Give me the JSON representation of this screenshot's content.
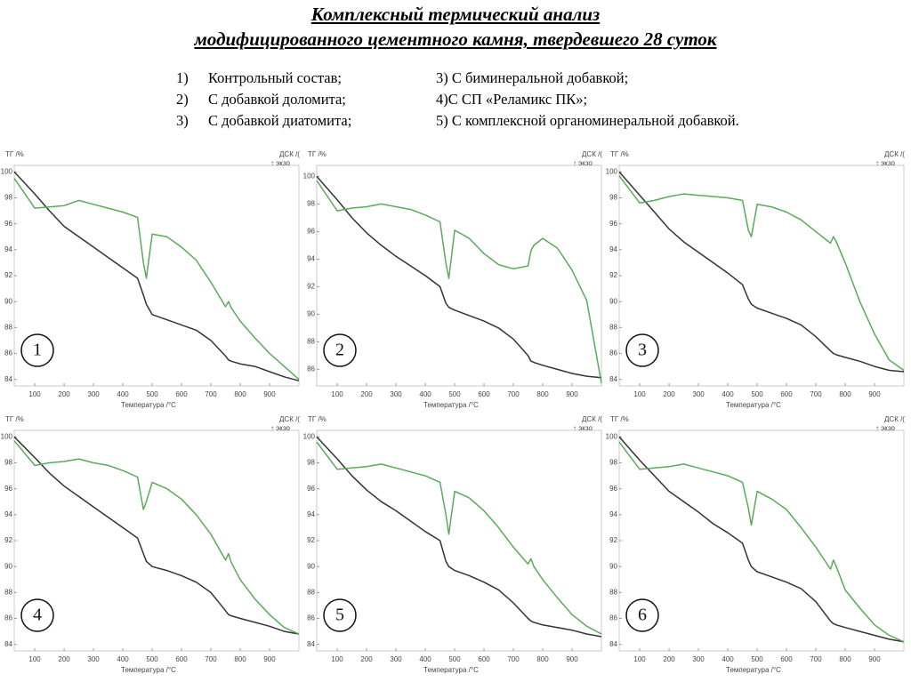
{
  "header": {
    "title": [
      "Комплексный термический анализ",
      "модифицированного цементного камня, твердевшего 28 суток"
    ],
    "left_items": [
      {
        "num": "1)",
        "text": "Контрольный состав;"
      },
      {
        "num": "2)",
        "text": "С добавкой доломита;"
      },
      {
        "num": "3)",
        "text": "С добавкой диатомита;"
      }
    ],
    "right_items": [
      "3) С биминеральной добавкой;",
      "4)С СП «Реламикс ПК»;",
      "5) С комплексной органоминеральной добавкой."
    ]
  },
  "chart_data": [
    {
      "type": "line",
      "label": "1",
      "y_label": "ТГ /%",
      "y2_label": "ДСК /(",
      "annotation": "↑ экзо",
      "x_label": "Температура /°C",
      "x": [
        30,
        100,
        150,
        200,
        250,
        300,
        350,
        400,
        450,
        470,
        480,
        500,
        550,
        600,
        650,
        700,
        750,
        760,
        770,
        800,
        850,
        900,
        950,
        1000
      ],
      "xlim": [
        30,
        1000
      ],
      "xticks": [
        100,
        200,
        300,
        400,
        500,
        600,
        700,
        800,
        900
      ],
      "ylim": [
        83.5,
        100.5
      ],
      "yticks": [
        84,
        86,
        88,
        90,
        92,
        94,
        96,
        98,
        100
      ],
      "series": [
        {
          "color": "#333333",
          "values": [
            100,
            98.3,
            97,
            95.8,
            95,
            94.2,
            93.4,
            92.6,
            91.8,
            90.5,
            89.8,
            89,
            88.6,
            88.2,
            87.8,
            87,
            85.8,
            85.5,
            85.4,
            85.2,
            85,
            84.6,
            84.2,
            83.9
          ]
        },
        {
          "color": "#5aaa5a",
          "values": [
            99.5,
            97.2,
            97.3,
            97.4,
            97.8,
            97.5,
            97.2,
            96.9,
            96.5,
            93,
            91.8,
            95.2,
            95,
            94.2,
            93.2,
            91.5,
            89.6,
            90,
            89.5,
            88.5,
            87.2,
            86,
            85,
            84
          ]
        }
      ]
    },
    {
      "type": "line",
      "label": "2",
      "y_label": "ТГ /%",
      "y2_label": "ДСК /(",
      "annotation": "↑ экзо",
      "x_label": "Температура /°C",
      "x": [
        30,
        100,
        150,
        200,
        250,
        300,
        350,
        400,
        450,
        470,
        480,
        500,
        550,
        600,
        650,
        700,
        750,
        760,
        770,
        800,
        850,
        900,
        950,
        1000
      ],
      "xlim": [
        30,
        1000
      ],
      "xticks": [
        100,
        200,
        300,
        400,
        500,
        600,
        700,
        800,
        900
      ],
      "ylim": [
        84.8,
        100.8
      ],
      "yticks": [
        86,
        88,
        90,
        92,
        94,
        96,
        98,
        100
      ],
      "series": [
        {
          "color": "#333333",
          "values": [
            100,
            98.3,
            97,
            95.9,
            95,
            94.2,
            93.5,
            92.8,
            92,
            90.8,
            90.5,
            90.3,
            89.9,
            89.5,
            89,
            88.2,
            87,
            86.6,
            86.5,
            86.3,
            86,
            85.7,
            85.5,
            85.4
          ]
        },
        {
          "color": "#5aaa5a",
          "values": [
            99.7,
            97.5,
            97.7,
            97.8,
            98,
            97.8,
            97.6,
            97.2,
            96.7,
            93.7,
            92.6,
            96.1,
            95.5,
            94.4,
            93.6,
            93.3,
            93.5,
            94.6,
            95,
            95.5,
            94.8,
            93.2,
            91,
            85
          ]
        }
      ]
    },
    {
      "type": "line",
      "label": "3",
      "y_label": "ТГ /%",
      "y2_label": "ДСК /(",
      "annotation": "↑ экзо",
      "x_label": "Температура /°C",
      "x": [
        30,
        100,
        150,
        200,
        250,
        300,
        350,
        400,
        450,
        470,
        480,
        500,
        550,
        600,
        650,
        700,
        750,
        760,
        770,
        800,
        850,
        900,
        950,
        1000
      ],
      "xlim": [
        30,
        1000
      ],
      "xticks": [
        100,
        200,
        300,
        400,
        500,
        600,
        700,
        800,
        900
      ],
      "ylim": [
        83.5,
        100.5
      ],
      "yticks": [
        84,
        86,
        88,
        90,
        92,
        94,
        96,
        98,
        100
      ],
      "series": [
        {
          "color": "#333333",
          "values": [
            100,
            98.2,
            96.9,
            95.6,
            94.6,
            93.8,
            93,
            92.2,
            91.3,
            90.2,
            89.8,
            89.5,
            89.1,
            88.7,
            88.2,
            87.3,
            86.2,
            86,
            85.9,
            85.7,
            85.4,
            85,
            84.7,
            84.6
          ]
        },
        {
          "color": "#5aaa5a",
          "values": [
            99.7,
            97.6,
            97.8,
            98.1,
            98.3,
            98.2,
            98.1,
            98,
            97.8,
            95.5,
            95,
            97.5,
            97.3,
            96.9,
            96.3,
            95.4,
            94.5,
            95,
            94.6,
            93,
            90,
            87.5,
            85.5,
            84.7
          ]
        }
      ]
    },
    {
      "type": "line",
      "label": "4",
      "y_label": "ТГ /%",
      "y2_label": "ДСК /(",
      "annotation": "↑ экзо",
      "x_label": "Температура /°C",
      "x": [
        30,
        100,
        150,
        200,
        250,
        300,
        350,
        400,
        450,
        470,
        480,
        500,
        550,
        600,
        650,
        700,
        750,
        760,
        770,
        800,
        850,
        900,
        950,
        1000
      ],
      "xlim": [
        30,
        1000
      ],
      "xticks": [
        100,
        200,
        300,
        400,
        500,
        600,
        700,
        800,
        900
      ],
      "ylim": [
        83.5,
        100.5
      ],
      "yticks": [
        84,
        86,
        88,
        90,
        92,
        94,
        96,
        98,
        100
      ],
      "series": [
        {
          "color": "#333333",
          "values": [
            100,
            98.4,
            97.2,
            96.2,
            95.4,
            94.6,
            93.8,
            93,
            92.2,
            91,
            90.4,
            90,
            89.7,
            89.3,
            88.8,
            88,
            86.6,
            86.3,
            86.2,
            86,
            85.7,
            85.4,
            85,
            84.8
          ]
        },
        {
          "color": "#5aaa5a",
          "values": [
            99.7,
            97.8,
            98,
            98.1,
            98.3,
            98,
            97.8,
            97.4,
            96.9,
            94.4,
            95,
            96.5,
            96,
            95.2,
            94,
            92.5,
            90.5,
            91,
            90.3,
            89,
            87.5,
            86.3,
            85.3,
            84.8
          ]
        }
      ]
    },
    {
      "type": "line",
      "label": "5",
      "y_label": "ТГ /%",
      "y2_label": "ДСК /(",
      "annotation": "↑ экзо",
      "x_label": "Температура /°C",
      "x": [
        30,
        100,
        150,
        200,
        250,
        300,
        350,
        400,
        450,
        470,
        480,
        500,
        550,
        600,
        650,
        700,
        750,
        760,
        770,
        800,
        850,
        900,
        950,
        1000
      ],
      "xlim": [
        30,
        1000
      ],
      "xticks": [
        100,
        200,
        300,
        400,
        500,
        600,
        700,
        800,
        900
      ],
      "ylim": [
        83.5,
        100.5
      ],
      "yticks": [
        84,
        86,
        88,
        90,
        92,
        94,
        96,
        98,
        100
      ],
      "series": [
        {
          "color": "#333333",
          "values": [
            100,
            98.3,
            97,
            95.9,
            95,
            94.3,
            93.5,
            92.7,
            92,
            90.4,
            90,
            89.7,
            89.3,
            88.8,
            88.2,
            87.2,
            86,
            85.8,
            85.7,
            85.5,
            85.3,
            85.1,
            84.8,
            84.6
          ]
        },
        {
          "color": "#5aaa5a",
          "values": [
            99.6,
            97.5,
            97.6,
            97.7,
            97.9,
            97.6,
            97.3,
            97,
            96.5,
            94,
            92.5,
            95.8,
            95.3,
            94.3,
            93,
            91.5,
            90.2,
            90.6,
            90,
            89,
            87.6,
            86.3,
            85.4,
            84.8
          ]
        }
      ]
    },
    {
      "type": "line",
      "label": "6",
      "y_label": "ТГ /%",
      "y2_label": "ДСК /(",
      "annotation": "↑ экзо",
      "x_label": "Температура /°C",
      "x": [
        30,
        100,
        150,
        200,
        250,
        300,
        350,
        400,
        450,
        470,
        480,
        500,
        550,
        600,
        650,
        700,
        750,
        760,
        770,
        800,
        850,
        900,
        950,
        1000
      ],
      "xlim": [
        30,
        1000
      ],
      "xticks": [
        100,
        200,
        300,
        400,
        500,
        600,
        700,
        800,
        900
      ],
      "ylim": [
        83.5,
        100.5
      ],
      "yticks": [
        84,
        86,
        88,
        90,
        92,
        94,
        96,
        98,
        100
      ],
      "series": [
        {
          "color": "#333333",
          "values": [
            100,
            98.2,
            97,
            95.8,
            95,
            94.2,
            93.3,
            92.6,
            91.8,
            90.5,
            90,
            89.6,
            89.2,
            88.8,
            88.3,
            87.3,
            85.8,
            85.6,
            85.5,
            85.3,
            85,
            84.7,
            84.4,
            84.2
          ]
        },
        {
          "color": "#5aaa5a",
          "values": [
            99.6,
            97.5,
            97.6,
            97.7,
            97.9,
            97.6,
            97.3,
            97,
            96.5,
            94.5,
            93.2,
            95.8,
            95.2,
            94.4,
            93,
            91.5,
            89.8,
            90.5,
            90,
            88.2,
            86.8,
            85.5,
            84.7,
            84.2
          ]
        }
      ]
    }
  ]
}
